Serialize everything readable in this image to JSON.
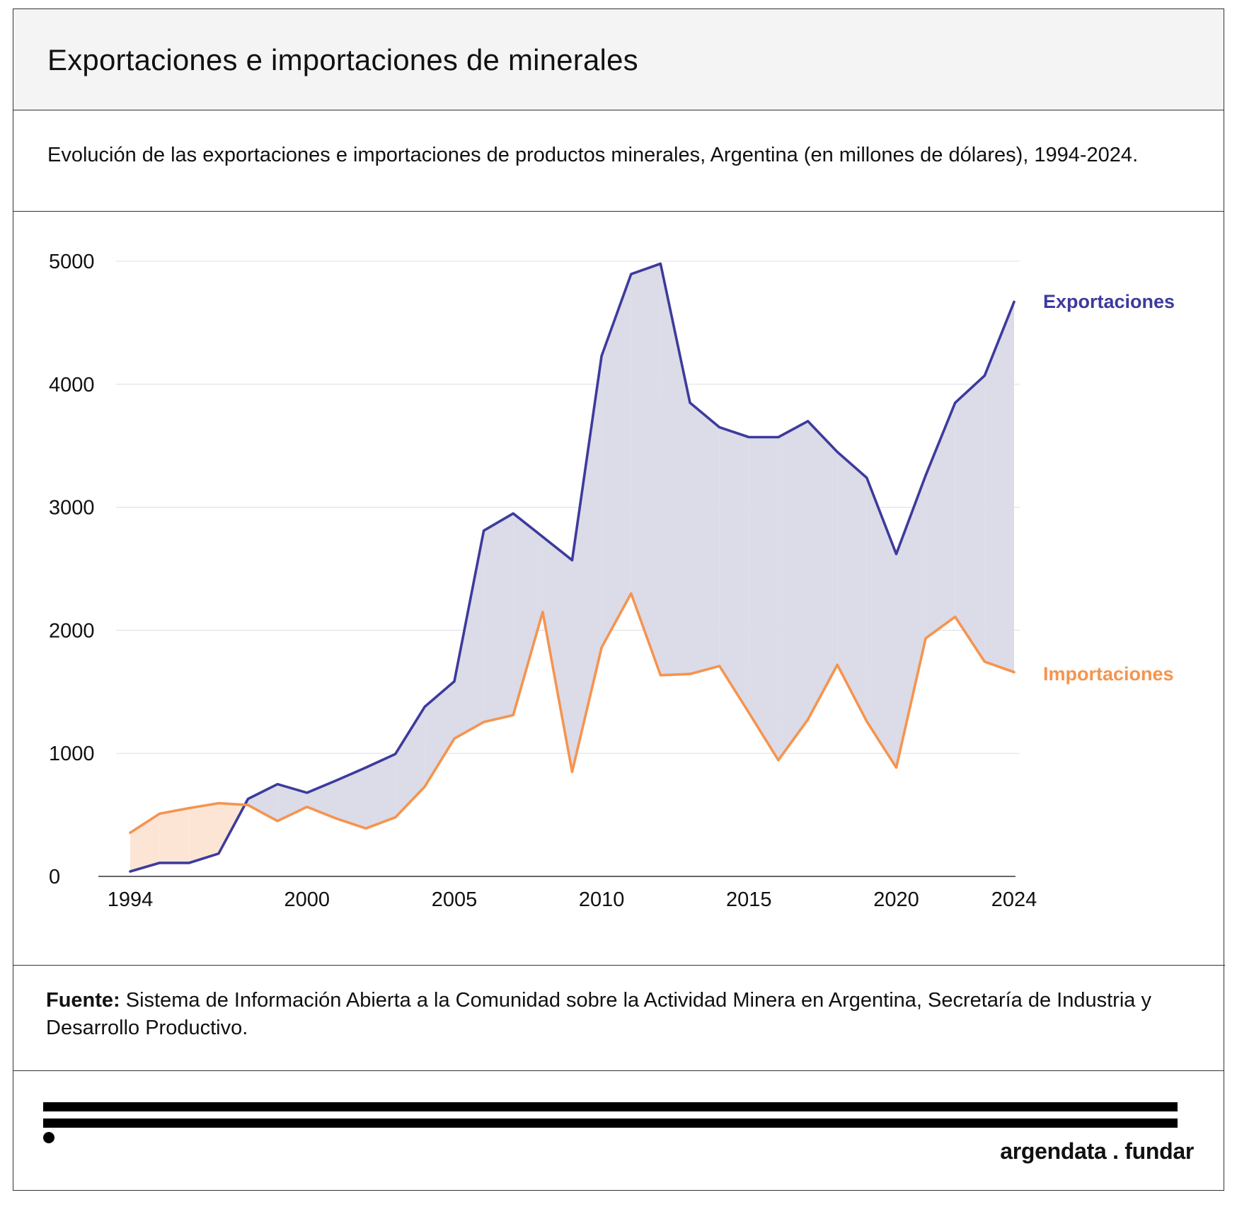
{
  "header": {
    "title": "Exportaciones e importaciones de minerales",
    "subtitle": "Evolución de las exportaciones e importaciones de productos minerales, Argentina (en millones de dólares), 1994-2024."
  },
  "source": {
    "label": "Fuente:",
    "text": " Sistema de Información Abierta a la Comunidad sobre la Actividad Minera en Argentina, Secretaría de Industria y Desarrollo Productivo."
  },
  "footer": {
    "logo_text": "argendata . fundar"
  },
  "colors": {
    "exports": "#3d3b9c",
    "imports": "#f5944f",
    "gap_exports_above": "#dcdbe8",
    "gap_imports_above": "#fde5d6",
    "grid": "#e3e3e3",
    "axis": "#333333"
  },
  "chart_data": {
    "type": "line",
    "title": "Exportaciones e importaciones de minerales",
    "subtitle": "Evolución de las exportaciones e importaciones de productos minerales, Argentina (en millones de dólares), 1994-2024.",
    "xlabel": "",
    "ylabel": "",
    "xlim": [
      1994,
      2024
    ],
    "ylim": [
      0,
      5000
    ],
    "xticks": [
      1994,
      2000,
      2005,
      2010,
      2015,
      2020,
      2024
    ],
    "yticks": [
      0,
      1000,
      2000,
      3000,
      4000,
      5000
    ],
    "grid": "horizontal",
    "legend": "direct labels at right end of lines",
    "x": [
      1994,
      1995,
      1996,
      1997,
      1998,
      1999,
      2000,
      2001,
      2002,
      2003,
      2004,
      2005,
      2006,
      2007,
      2008,
      2009,
      2010,
      2011,
      2012,
      2013,
      2014,
      2015,
      2016,
      2017,
      2018,
      2019,
      2020,
      2021,
      2022,
      2023,
      2024
    ],
    "series": [
      {
        "name": "Exportaciones",
        "values": [
          40,
          110,
          110,
          185,
          630,
          750,
          680,
          780,
          885,
          995,
          1380,
          1585,
          2810,
          2950,
          2760,
          2570,
          4230,
          4895,
          4980,
          3850,
          3650,
          3570,
          3570,
          3700,
          3450,
          3240,
          2620,
          3260,
          3850,
          4070,
          4670
        ]
      },
      {
        "name": "Importaciones",
        "values": [
          355,
          510,
          555,
          595,
          580,
          450,
          565,
          470,
          390,
          480,
          730,
          1120,
          1255,
          1310,
          2150,
          850,
          1860,
          2300,
          1635,
          1645,
          1710,
          1330,
          945,
          1275,
          1720,
          1260,
          885,
          1935,
          2110,
          1745,
          1660
        ]
      }
    ]
  }
}
